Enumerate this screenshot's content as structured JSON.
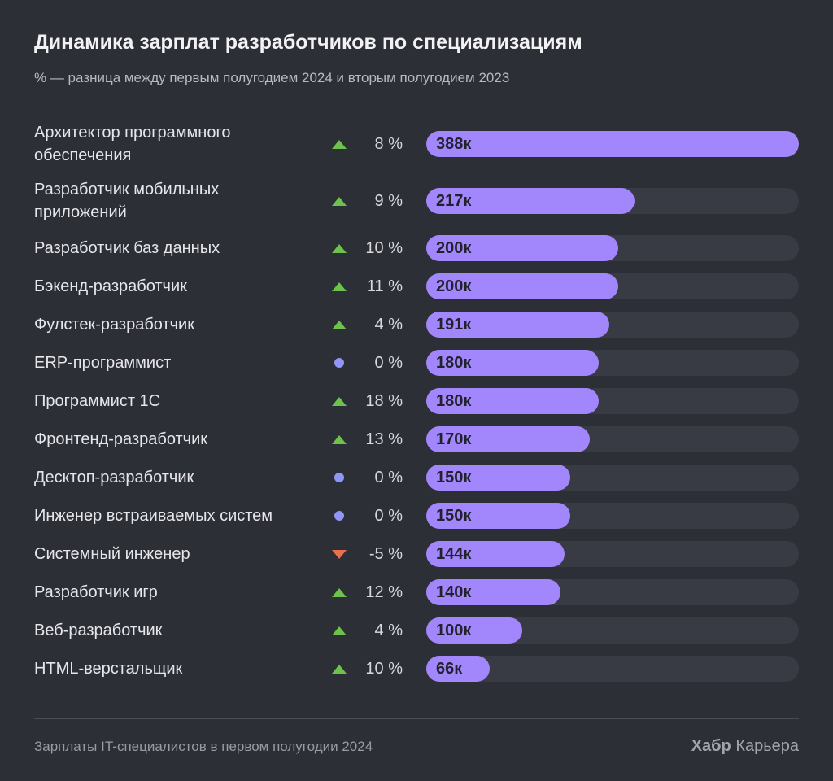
{
  "chart_data": {
    "type": "bar",
    "orientation": "horizontal",
    "title": "Динамика зарплат разработчиков по специализациям",
    "subtitle": "% — разница между первым полугодием 2024 и вторым полугодием 2023",
    "xlim": [
      0,
      388
    ],
    "categories": [
      "Архитектор программного обеспечения",
      "Разработчик мобильных приложений",
      "Разработчик баз данных",
      "Бэкенд-разработчик",
      "Фулстек-разработчик",
      "ERP-программист",
      "Программист 1С",
      "Фронтенд-разработчик",
      "Десктоп-разработчик",
      "Инженер встраиваемых систем",
      "Системный инженер",
      "Разработчик игр",
      "Веб-разработчик",
      "HTML-верстальщик"
    ],
    "values": [
      388,
      217,
      200,
      200,
      191,
      180,
      180,
      170,
      150,
      150,
      144,
      140,
      100,
      66
    ],
    "value_labels": [
      "388к",
      "217к",
      "200к",
      "200к",
      "191к",
      "180к",
      "180к",
      "170к",
      "150к",
      "150к",
      "144к",
      "140к",
      "100к",
      "66к"
    ],
    "change_percent": [
      8,
      9,
      10,
      11,
      4,
      0,
      18,
      13,
      0,
      0,
      -5,
      12,
      4,
      10
    ],
    "change_labels": [
      "8 %",
      "9 %",
      "10 %",
      "11 %",
      "4 %",
      "0 %",
      "18 %",
      "13 %",
      "0 %",
      "0 %",
      "-5 %",
      "12 %",
      "4 %",
      "10 %"
    ],
    "colors": {
      "bar": "#a286fb",
      "track": "#393b44",
      "up": "#6cc24a",
      "down": "#e8704a",
      "neutral": "#8f96f5"
    }
  },
  "footer": {
    "source": "Зарплаты IT-специалистов в первом полугодии 2024",
    "brand_bold": "Хабр",
    "brand_rest": "Карьера"
  }
}
